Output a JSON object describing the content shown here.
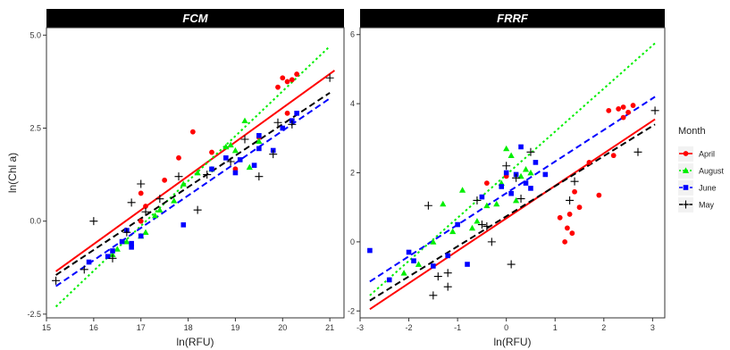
{
  "chart_data": [
    {
      "type": "scatter",
      "title": "FCM",
      "xlabel": "ln(RFU)",
      "ylabel": "ln(Chl a)",
      "xlim": [
        15,
        21.3
      ],
      "ylim": [
        -2.6,
        5.2
      ],
      "xticks": [
        15,
        16,
        17,
        18,
        19,
        20,
        21
      ],
      "yticks": [
        -2.5,
        0.0,
        2.5,
        5.0
      ],
      "ytick_labels": [
        "-2.5",
        "0.0",
        "2.5",
        "5.0"
      ],
      "series": [
        {
          "name": "April",
          "color": "#ff0000",
          "marker": "circle",
          "line": "solid",
          "fit": [
            [
              15.2,
              -1.35
            ],
            [
              21.1,
              4.05
            ]
          ],
          "points": [
            [
              17.0,
              0.75
            ],
            [
              17.0,
              0.0
            ],
            [
              17.1,
              0.4
            ],
            [
              17.5,
              1.1
            ],
            [
              17.8,
              1.7
            ],
            [
              18.1,
              2.4
            ],
            [
              18.5,
              1.85
            ],
            [
              19.0,
              1.4
            ],
            [
              19.5,
              2.25
            ],
            [
              19.9,
              3.6
            ],
            [
              20.0,
              3.85
            ],
            [
              20.1,
              3.75
            ],
            [
              20.2,
              3.8
            ],
            [
              20.3,
              3.95
            ],
            [
              20.1,
              2.9
            ]
          ]
        },
        {
          "name": "August",
          "color": "#00ee00",
          "marker": "triangle",
          "line": "dotted",
          "fit": [
            [
              15.2,
              -2.3
            ],
            [
              21.0,
              4.7
            ]
          ],
          "points": [
            [
              16.4,
              -0.9
            ],
            [
              16.5,
              -0.75
            ],
            [
              16.7,
              -0.55
            ],
            [
              17.0,
              -0.4
            ],
            [
              17.1,
              -0.3
            ],
            [
              17.3,
              0.15
            ],
            [
              17.4,
              0.3
            ],
            [
              17.7,
              0.55
            ],
            [
              17.9,
              1.0
            ],
            [
              18.2,
              1.3
            ],
            [
              18.5,
              1.4
            ],
            [
              18.8,
              2.0
            ],
            [
              18.9,
              2.05
            ],
            [
              19.0,
              1.9
            ],
            [
              19.2,
              2.7
            ],
            [
              19.3,
              1.45
            ],
            [
              19.5,
              2.15
            ]
          ]
        },
        {
          "name": "June",
          "color": "#0000ff",
          "marker": "square",
          "line": "dashed",
          "fit": [
            [
              15.2,
              -1.75
            ],
            [
              21.0,
              3.3
            ]
          ],
          "points": [
            [
              15.9,
              -1.1
            ],
            [
              16.3,
              -0.95
            ],
            [
              16.4,
              -0.8
            ],
            [
              16.6,
              -0.55
            ],
            [
              16.7,
              -0.25
            ],
            [
              16.8,
              -0.7
            ],
            [
              16.8,
              -0.6
            ],
            [
              17.0,
              -0.4
            ],
            [
              17.9,
              -0.1
            ],
            [
              18.5,
              1.4
            ],
            [
              18.8,
              1.7
            ],
            [
              19.0,
              1.3
            ],
            [
              19.1,
              1.65
            ],
            [
              19.4,
              1.5
            ],
            [
              19.5,
              1.95
            ],
            [
              19.8,
              1.9
            ],
            [
              20.0,
              2.5
            ],
            [
              20.2,
              2.7
            ],
            [
              20.3,
              2.9
            ],
            [
              19.5,
              2.3
            ]
          ]
        },
        {
          "name": "May",
          "color": "#000000",
          "marker": "plus",
          "line": "dashed",
          "fit": [
            [
              15.2,
              -1.45
            ],
            [
              21.0,
              3.45
            ]
          ],
          "points": [
            [
              15.2,
              -1.6
            ],
            [
              15.8,
              -1.3
            ],
            [
              16.0,
              0.0
            ],
            [
              16.4,
              -1.0
            ],
            [
              16.7,
              -0.3
            ],
            [
              16.8,
              0.5
            ],
            [
              17.0,
              1.0
            ],
            [
              17.1,
              0.25
            ],
            [
              17.4,
              0.6
            ],
            [
              17.8,
              1.2
            ],
            [
              18.2,
              0.3
            ],
            [
              18.4,
              1.25
            ],
            [
              18.9,
              1.6
            ],
            [
              19.2,
              2.2
            ],
            [
              19.5,
              1.2
            ],
            [
              19.8,
              1.8
            ],
            [
              19.9,
              2.65
            ],
            [
              20.2,
              2.6
            ],
            [
              21.0,
              3.85
            ]
          ]
        }
      ]
    },
    {
      "type": "scatter",
      "title": "FRRF",
      "xlabel": "ln(RFU)",
      "ylabel": "",
      "xlim": [
        -3.0,
        3.25
      ],
      "ylim": [
        -2.2,
        6.2
      ],
      "xticks": [
        -3,
        -2,
        -1,
        0,
        1,
        2,
        3
      ],
      "yticks": [
        -2,
        0,
        2,
        4,
        6
      ],
      "ytick_labels": [
        "-2",
        "0",
        "2",
        "4",
        "6"
      ],
      "series": [
        {
          "name": "April",
          "color": "#ff0000",
          "marker": "circle",
          "line": "solid",
          "fit": [
            [
              -2.8,
              -1.95
            ],
            [
              3.05,
              3.55
            ]
          ],
          "points": [
            [
              -0.4,
              1.7
            ],
            [
              0.0,
              1.9
            ],
            [
              1.1,
              0.7
            ],
            [
              1.2,
              0.0
            ],
            [
              1.25,
              0.4
            ],
            [
              1.3,
              0.8
            ],
            [
              1.35,
              0.25
            ],
            [
              1.4,
              1.45
            ],
            [
              1.5,
              1.0
            ],
            [
              1.9,
              1.35
            ],
            [
              2.1,
              3.8
            ],
            [
              2.3,
              3.85
            ],
            [
              2.4,
              3.9
            ],
            [
              2.5,
              3.75
            ],
            [
              2.6,
              3.95
            ],
            [
              2.4,
              3.6
            ],
            [
              1.7,
              2.3
            ],
            [
              2.2,
              2.5
            ]
          ]
        },
        {
          "name": "August",
          "color": "#00ee00",
          "marker": "triangle",
          "line": "dotted",
          "fit": [
            [
              -2.8,
              -1.55
            ],
            [
              3.05,
              5.75
            ]
          ],
          "points": [
            [
              -2.1,
              -0.9
            ],
            [
              -1.8,
              -0.65
            ],
            [
              -1.5,
              0.0
            ],
            [
              -1.3,
              1.1
            ],
            [
              -1.1,
              0.3
            ],
            [
              -0.7,
              0.4
            ],
            [
              -0.6,
              0.6
            ],
            [
              -0.4,
              1.05
            ],
            [
              -0.2,
              1.1
            ],
            [
              -0.1,
              1.7
            ],
            [
              0.0,
              2.7
            ],
            [
              0.1,
              2.5
            ],
            [
              0.2,
              1.2
            ],
            [
              0.3,
              1.9
            ],
            [
              0.4,
              2.1
            ],
            [
              0.5,
              2.0
            ],
            [
              -0.9,
              1.5
            ]
          ]
        },
        {
          "name": "June",
          "color": "#0000ff",
          "marker": "square",
          "line": "dashed",
          "fit": [
            [
              -2.8,
              -1.15
            ],
            [
              3.05,
              4.2
            ]
          ],
          "points": [
            [
              -2.8,
              -0.25
            ],
            [
              -2.4,
              -1.1
            ],
            [
              -2.0,
              -0.3
            ],
            [
              -1.9,
              -0.55
            ],
            [
              -1.5,
              -0.7
            ],
            [
              -1.2,
              -0.4
            ],
            [
              -1.0,
              0.5
            ],
            [
              -0.8,
              -0.65
            ],
            [
              -0.5,
              1.3
            ],
            [
              -0.1,
              1.6
            ],
            [
              0.1,
              1.4
            ],
            [
              0.2,
              1.95
            ],
            [
              0.3,
              2.75
            ],
            [
              0.4,
              1.7
            ],
            [
              0.5,
              1.55
            ],
            [
              0.6,
              2.3
            ],
            [
              0.8,
              1.95
            ],
            [
              0.0,
              2.0
            ]
          ]
        },
        {
          "name": "May",
          "color": "#000000",
          "marker": "plus",
          "line": "dashed",
          "fit": [
            [
              -2.8,
              -1.7
            ],
            [
              3.05,
              3.4
            ]
          ],
          "points": [
            [
              -1.6,
              1.05
            ],
            [
              -1.5,
              -1.55
            ],
            [
              -1.4,
              -1.0
            ],
            [
              -1.2,
              -0.9
            ],
            [
              -1.2,
              -1.3
            ],
            [
              -0.5,
              0.5
            ],
            [
              -0.4,
              0.45
            ],
            [
              -0.3,
              0.0
            ],
            [
              0.0,
              2.2
            ],
            [
              0.1,
              -0.65
            ],
            [
              0.2,
              1.85
            ],
            [
              0.3,
              1.25
            ],
            [
              0.5,
              2.6
            ],
            [
              1.3,
              1.2
            ],
            [
              1.4,
              1.75
            ],
            [
              2.7,
              2.6
            ],
            [
              3.05,
              3.8
            ],
            [
              -0.6,
              1.2
            ]
          ]
        }
      ]
    }
  ],
  "legend": {
    "title": "Month",
    "items": [
      "April",
      "August",
      "June",
      "May"
    ]
  }
}
